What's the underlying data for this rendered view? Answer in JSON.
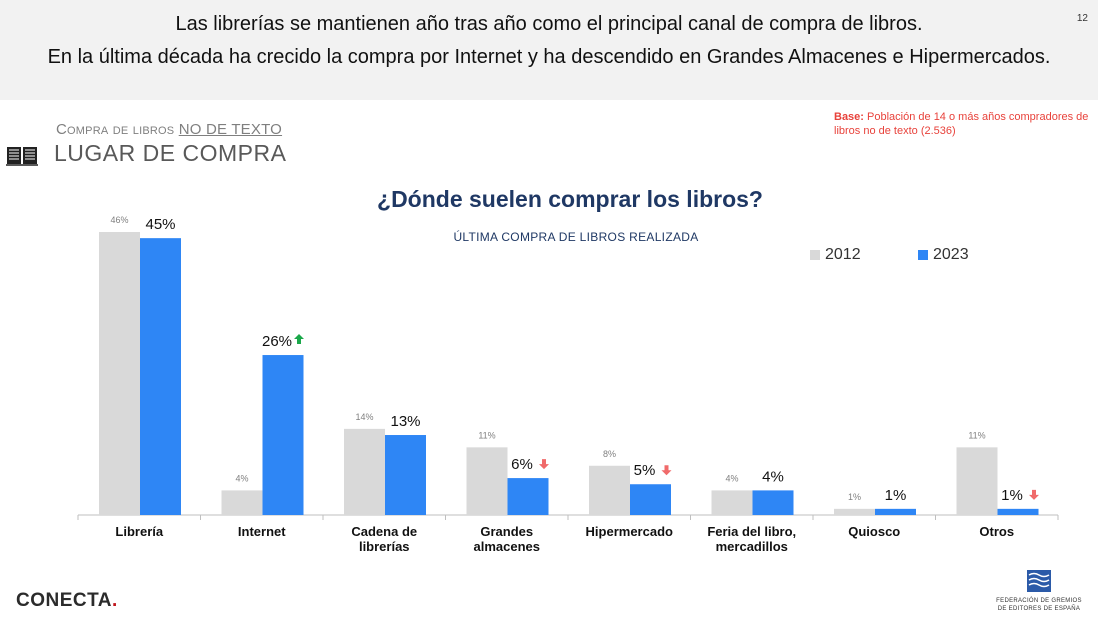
{
  "header": {
    "line1": "Las librerías se mantienen año tras año como el principal canal de compra de libros.",
    "line2": "En la última década ha crecido la compra por Internet y ha descendido en Grandes Almacenes e Hipermercados.",
    "page_number": "12"
  },
  "section": {
    "subtitle_prefix": "Compra de libros",
    "subtitle_emph": "NO DE TEXTO",
    "title": "LUGAR DE COMPRA",
    "icon": "open-book-icon"
  },
  "base_note": {
    "label": "Base:",
    "text": "Población de 14 o más años compradores de libros no de texto (2.536)"
  },
  "colors": {
    "series_2012": "#d9d9d9",
    "series_2023": "#2e86f5",
    "up_arrow": "#1aa84a",
    "down_arrow": "#f06a6a",
    "title": "#1f3864"
  },
  "chart_data": {
    "type": "bar",
    "title": "¿Dónde suelen comprar los libros?",
    "subtitle": "ÚLTIMA COMPRA DE LIBROS REALIZADA",
    "categories": [
      [
        "Librería"
      ],
      [
        "Internet"
      ],
      [
        "Cadena de",
        "librerías"
      ],
      [
        "Grandes",
        "almacenes"
      ],
      [
        "Hipermercado"
      ],
      [
        "Feria del libro,",
        "mercadillos"
      ],
      [
        "Quiosco"
      ],
      [
        "Otros"
      ]
    ],
    "series": [
      {
        "name": "2012",
        "values": [
          46,
          4,
          14,
          11,
          8,
          4,
          1,
          11
        ],
        "labels": [
          "46%",
          "4%",
          "14%",
          "11%",
          "8%",
          "4%",
          "1%",
          "11%"
        ]
      },
      {
        "name": "2023",
        "values": [
          45,
          26,
          13,
          6,
          5,
          4,
          1,
          1
        ],
        "labels": [
          "45%",
          "26%",
          "13%",
          "6%",
          "5%",
          "4%",
          "1%",
          "1%"
        ]
      }
    ],
    "trend_2023": [
      "",
      "up",
      "",
      "down",
      "down",
      "",
      "",
      "down"
    ],
    "ylim": [
      0,
      46
    ],
    "grid": false,
    "legend_position": "top-right"
  },
  "footer": {
    "left_logo": "CONECTA",
    "right_logo_lines": [
      "FEDERACIÓN DE GREMIOS",
      "DE EDITORES DE ESPAÑA"
    ]
  }
}
